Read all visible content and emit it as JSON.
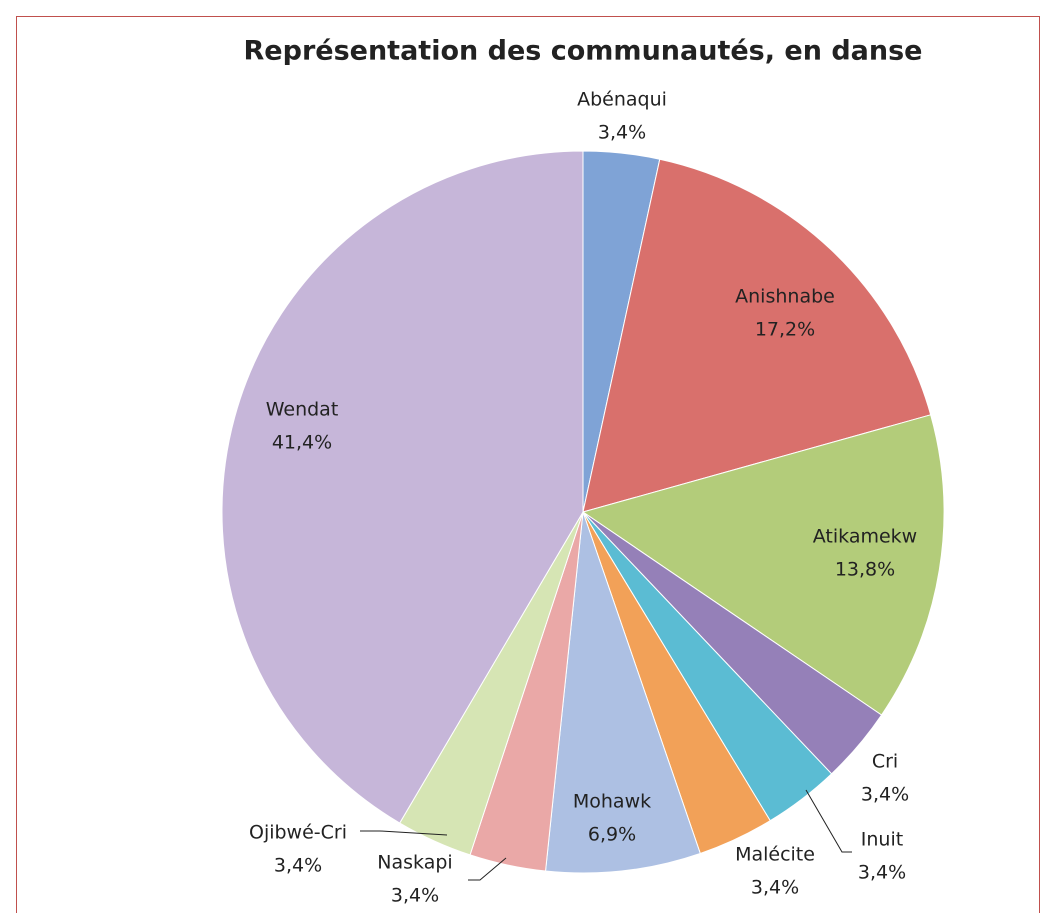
{
  "chart_data": {
    "type": "pie",
    "title": "Représentation des communautés, en danse",
    "categories": [
      "Abénaqui",
      "Anishnabe",
      "Atikamekw",
      "Cri",
      "Inuit",
      "Malécite",
      "Mohawk",
      "Naskapi",
      "Ojibwé-Cri",
      "Wendat"
    ],
    "values": [
      3.4,
      17.2,
      13.8,
      3.4,
      3.4,
      3.4,
      6.9,
      3.4,
      3.4,
      41.4
    ],
    "value_labels": [
      "3,4%",
      "17,2%",
      "13,8%",
      "3,4%",
      "3,4%",
      "3,4%",
      "6,9%",
      "3,4%",
      "3,4%",
      "41,4%"
    ],
    "colors": [
      "#7fa3d6",
      "#d9706c",
      "#b3cc7a",
      "#9580b8",
      "#5bbcd3",
      "#f2a158",
      "#adc0e3",
      "#eaa8a7",
      "#d6e5b4",
      "#c6b6d9"
    ]
  }
}
